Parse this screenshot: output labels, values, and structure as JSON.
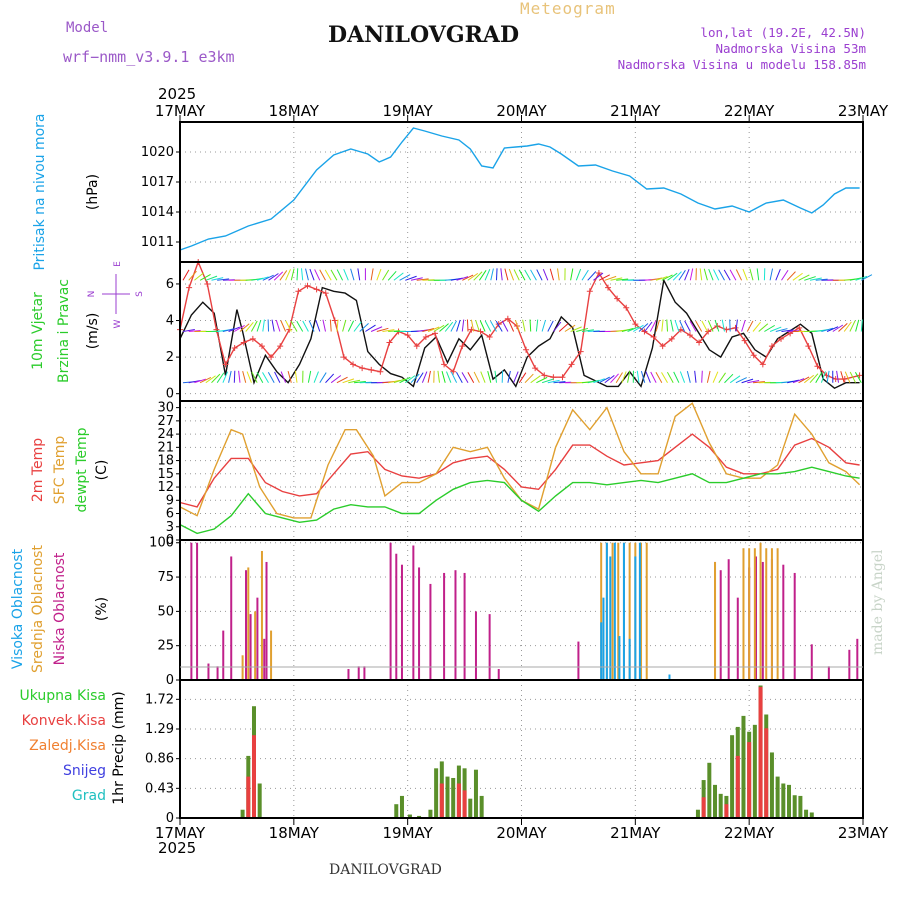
{
  "header": {
    "model_label": "Model",
    "model_name": "wrf−nmm_v3.9.1  e3km",
    "title": "DANILOVGRAD",
    "subtitle": "Meteogram",
    "lonlat": "lon,lat (19.2E, 42.5N)",
    "altitude": "Nadmorska Visina 53m",
    "model_altitude": "Nadmorska Visina u modelu 158.85m"
  },
  "footer": {
    "station": "DANILOVGRAD",
    "credit": "made by Angel"
  },
  "time_axis": {
    "year": "2025",
    "ticks": [
      "17MAY",
      "18MAY",
      "19MAY",
      "20MAY",
      "21MAY",
      "22MAY",
      "23MAY"
    ]
  },
  "compass": {
    "n": "N",
    "s": "S",
    "e": "E",
    "w": "W"
  },
  "colors": {
    "pressure": "#1aa3e8",
    "wind_label": "#2bcc2b",
    "temp2m": "#e84040",
    "sfc_temp": "#e0a030",
    "dewpt": "#2bcc2b",
    "high_cloud": "#1aa3e8",
    "mid_cloud": "#e0a030",
    "low_cloud": "#c0208a",
    "total_precip": "#2bcc2b",
    "conv_precip": "#e84040",
    "frozen_precip": "#f08030",
    "snow": "#4040e0",
    "hail": "#20c0c0"
  },
  "chart_data": [
    {
      "id": "pressure",
      "type": "line",
      "labels": [
        "Pritisak na nivou mora",
        "(hPa)"
      ],
      "ylim": [
        1009,
        1023
      ],
      "yticks": [
        "1011",
        "1014",
        "1017",
        "1020"
      ],
      "series": [
        {
          "name": "Pressure",
          "color": "#1aa3e8",
          "x": [
            0,
            0.1,
            0.25,
            0.4,
            0.6,
            0.8,
            1.0,
            1.2,
            1.35,
            1.5,
            1.65,
            1.75,
            1.85,
            1.95,
            2.05,
            2.15,
            2.3,
            2.45,
            2.55,
            2.65,
            2.75,
            2.85,
            2.95,
            3.05,
            3.15,
            3.25,
            3.35,
            3.5,
            3.65,
            3.8,
            3.95,
            4.1,
            4.25,
            4.4,
            4.55,
            4.7,
            4.85,
            5.0,
            5.15,
            5.3,
            5.45,
            5.55,
            5.65,
            5.75,
            5.85,
            5.97
          ],
          "values": [
            1010.2,
            1010.6,
            1011.3,
            1011.6,
            1012.6,
            1013.3,
            1015.2,
            1018.2,
            1019.7,
            1020.3,
            1019.8,
            1019.0,
            1019.5,
            1021.0,
            1022.4,
            1022.1,
            1021.6,
            1021.2,
            1020.3,
            1018.6,
            1018.4,
            1020.4,
            1020.5,
            1020.6,
            1020.8,
            1020.5,
            1019.8,
            1018.6,
            1018.7,
            1018.1,
            1017.6,
            1016.3,
            1016.4,
            1015.8,
            1014.9,
            1014.3,
            1014.6,
            1014.0,
            1014.9,
            1015.2,
            1014.4,
            1013.9,
            1014.7,
            1015.8,
            1016.4,
            1016.4
          ]
        }
      ]
    },
    {
      "id": "wind",
      "type": "line",
      "labels": [
        "10m Vjetar",
        "Brzina i Pravac",
        "(m/s)"
      ],
      "ylim": [
        -0.4,
        7.2
      ],
      "yticks": [
        "0",
        "2",
        "4",
        "6"
      ],
      "series": [
        {
          "name": "Wind speed",
          "color": "#111111",
          "x": [
            0,
            0.1,
            0.2,
            0.3,
            0.4,
            0.5,
            0.55,
            0.65,
            0.75,
            0.85,
            0.95,
            1.05,
            1.15,
            1.25,
            1.35,
            1.45,
            1.55,
            1.65,
            1.75,
            1.85,
            1.95,
            2.05,
            2.15,
            2.25,
            2.35,
            2.45,
            2.55,
            2.65,
            2.75,
            2.85,
            2.95,
            3.05,
            3.15,
            3.25,
            3.35,
            3.45,
            3.55,
            3.65,
            3.75,
            3.85,
            3.95,
            4.05,
            4.15,
            4.25,
            4.35,
            4.45,
            4.55,
            4.65,
            4.75,
            4.85,
            4.95,
            5.05,
            5.15,
            5.25,
            5.35,
            5.45,
            5.55,
            5.65,
            5.75,
            5.85,
            5.97
          ],
          "values": [
            3.0,
            4.3,
            5.0,
            4.4,
            1.0,
            4.6,
            3.4,
            0.6,
            2.1,
            1.2,
            0.6,
            1.6,
            3.0,
            5.8,
            5.6,
            5.5,
            5.1,
            2.3,
            1.6,
            1.1,
            0.9,
            0.4,
            2.5,
            3.1,
            1.7,
            3.0,
            2.4,
            3.2,
            0.8,
            1.3,
            0.4,
            2.0,
            2.6,
            3.0,
            4.2,
            3.6,
            1.0,
            0.7,
            0.4,
            0.4,
            1.2,
            0.4,
            2.5,
            6.2,
            5.0,
            4.4,
            3.4,
            2.4,
            2.0,
            3.1,
            3.3,
            2.4,
            2.0,
            3.0,
            3.4,
            3.8,
            3.3,
            0.8,
            0.3,
            0.6,
            0.6
          ]
        },
        {
          "name": "Wind gust",
          "color": "#e84040",
          "x": [
            0,
            0.08,
            0.16,
            0.24,
            0.32,
            0.4,
            0.48,
            0.56,
            0.64,
            0.72,
            0.8,
            0.88,
            0.96,
            1.04,
            1.12,
            1.2,
            1.28,
            1.36,
            1.44,
            1.52,
            1.6,
            1.68,
            1.76,
            1.84,
            1.92,
            2.0,
            2.08,
            2.16,
            2.24,
            2.32,
            2.4,
            2.48,
            2.56,
            2.64,
            2.72,
            2.8,
            2.88,
            2.96,
            3.04,
            3.12,
            3.2,
            3.28,
            3.36,
            3.44,
            3.52,
            3.6,
            3.68,
            3.76,
            3.84,
            3.92,
            4.0,
            4.08,
            4.16,
            4.24,
            4.32,
            4.4,
            4.48,
            4.56,
            4.64,
            4.72,
            4.8,
            4.88,
            4.96,
            5.04,
            5.12,
            5.2,
            5.28,
            5.36,
            5.44,
            5.52,
            5.6,
            5.68,
            5.76,
            5.84,
            5.97
          ],
          "values": [
            3.5,
            5.8,
            7.2,
            6.0,
            3.5,
            1.6,
            2.5,
            2.8,
            3.0,
            2.6,
            2.0,
            2.6,
            3.5,
            5.6,
            5.9,
            5.7,
            5.5,
            4.0,
            2.0,
            1.6,
            1.4,
            1.3,
            1.2,
            2.8,
            3.4,
            3.2,
            2.6,
            3.1,
            3.3,
            1.6,
            1.2,
            2.6,
            3.5,
            3.4,
            3.1,
            3.8,
            4.1,
            3.7,
            2.4,
            1.4,
            1.0,
            0.9,
            0.9,
            1.6,
            2.3,
            5.6,
            6.6,
            5.8,
            5.2,
            4.7,
            3.8,
            3.4,
            3.1,
            2.6,
            3.0,
            3.5,
            3.2,
            2.8,
            3.4,
            3.7,
            3.5,
            3.6,
            2.9,
            2.1,
            1.6,
            2.6,
            3.0,
            3.3,
            3.6,
            2.6,
            1.5,
            1.0,
            0.8,
            0.8,
            1.0
          ]
        }
      ]
    },
    {
      "id": "temperature",
      "type": "line",
      "labels": [
        "2m Temp",
        "SFC Temp",
        "dewpt Temp",
        "(C)"
      ],
      "ylim": [
        0,
        31.5
      ],
      "yticks": [
        "0",
        "3",
        "6",
        "9",
        "12",
        "15",
        "18",
        "21",
        "24",
        "27",
        "30"
      ],
      "series": [
        {
          "name": "2m Temp",
          "color": "#e84040",
          "x": [
            0,
            0.15,
            0.3,
            0.45,
            0.6,
            0.75,
            0.9,
            1.05,
            1.2,
            1.35,
            1.5,
            1.65,
            1.8,
            1.95,
            2.1,
            2.25,
            2.4,
            2.55,
            2.7,
            2.85,
            3.0,
            3.15,
            3.3,
            3.45,
            3.6,
            3.75,
            3.9,
            4.05,
            4.2,
            4.35,
            4.5,
            4.65,
            4.8,
            4.95,
            5.1,
            5.25,
            5.4,
            5.55,
            5.7,
            5.85,
            5.97
          ],
          "values": [
            8.5,
            7.5,
            14,
            18.5,
            18.5,
            13,
            11,
            10,
            10.5,
            15,
            19.5,
            20,
            16,
            14.5,
            14,
            15,
            17.5,
            18.5,
            19,
            16,
            12,
            11.5,
            16,
            21.5,
            21.5,
            19,
            17,
            17.5,
            18,
            21,
            24,
            21,
            16.5,
            15,
            15,
            16,
            21.5,
            23,
            21,
            17.5,
            17
          ]
        },
        {
          "name": "SFC Temp",
          "color": "#e0a030",
          "x": [
            0,
            0.15,
            0.3,
            0.45,
            0.55,
            0.7,
            0.85,
            1.0,
            1.15,
            1.3,
            1.45,
            1.55,
            1.7,
            1.8,
            1.95,
            2.1,
            2.25,
            2.4,
            2.55,
            2.7,
            2.85,
            3.0,
            3.15,
            3.3,
            3.45,
            3.6,
            3.75,
            3.9,
            4.05,
            4.2,
            4.35,
            4.5,
            4.65,
            4.8,
            4.95,
            5.1,
            5.25,
            5.4,
            5.55,
            5.7,
            5.85,
            5.97
          ],
          "values": [
            7.5,
            5.5,
            16,
            25,
            24,
            12,
            6,
            5,
            5,
            17,
            25,
            25,
            19,
            10,
            13,
            13,
            15,
            21,
            20,
            21,
            14,
            9,
            7,
            21,
            29.5,
            25,
            30,
            20,
            15,
            15,
            28,
            31,
            22,
            15,
            14,
            14,
            17,
            28.5,
            24,
            17.5,
            15.5,
            12.5
          ]
        },
        {
          "name": "dewpt Temp",
          "color": "#2bcc2b",
          "x": [
            0,
            0.15,
            0.3,
            0.45,
            0.6,
            0.75,
            0.9,
            1.05,
            1.2,
            1.35,
            1.5,
            1.65,
            1.8,
            1.95,
            2.1,
            2.25,
            2.4,
            2.55,
            2.7,
            2.85,
            3.0,
            3.15,
            3.3,
            3.45,
            3.6,
            3.75,
            3.9,
            4.05,
            4.2,
            4.35,
            4.5,
            4.65,
            4.8,
            4.95,
            5.1,
            5.25,
            5.4,
            5.55,
            5.7,
            5.85,
            5.97
          ],
          "values": [
            3.5,
            1.5,
            2.5,
            5.5,
            10.5,
            6,
            5,
            4,
            4.5,
            7,
            8,
            7.5,
            7.5,
            6,
            6,
            9,
            11.5,
            13,
            13.5,
            13,
            9,
            6.5,
            10,
            13,
            13,
            12.5,
            13,
            13.5,
            13,
            14,
            15,
            13,
            13,
            14,
            15,
            15,
            15.5,
            16.5,
            15.5,
            14.5,
            14
          ]
        }
      ]
    },
    {
      "id": "clouds",
      "type": "bar",
      "labels": [
        "Visoka Oblacnost",
        "Srednja Oblacnost",
        "Niska Oblacnost",
        "(%)"
      ],
      "ylim": [
        0,
        102
      ],
      "yticks": [
        "0",
        "25",
        "50",
        "75",
        "100"
      ],
      "series": [
        {
          "name": "Niska Oblacnost",
          "color": "#c0208a",
          "x": [
            0.1,
            0.15,
            0.25,
            0.33,
            0.38,
            0.45,
            0.58,
            0.62,
            0.68,
            0.74,
            0.76,
            1.48,
            1.57,
            1.62,
            1.85,
            1.9,
            1.95,
            2.05,
            2.1,
            2.2,
            2.32,
            2.42,
            2.5,
            2.6,
            2.72,
            2.8,
            3.5,
            4.7,
            4.75,
            4.82,
            4.9,
            5.0,
            5.06,
            5.12,
            5.2,
            5.3,
            5.4,
            5.55,
            5.7,
            5.88,
            5.95
          ],
          "values": [
            100,
            100,
            12,
            10,
            36,
            90,
            80,
            48,
            60,
            30,
            86,
            8,
            10,
            10,
            100,
            92,
            84,
            98,
            82,
            70,
            78,
            80,
            78,
            50,
            48,
            8,
            28,
            86,
            80,
            88,
            60,
            82,
            90,
            86,
            88,
            84,
            78,
            26,
            10,
            22,
            30
          ]
        },
        {
          "name": "Srednja Oblacnost",
          "color": "#e0a030",
          "x": [
            0.55,
            0.6,
            0.66,
            0.72,
            0.8,
            3.7,
            3.75,
            3.8,
            3.85,
            3.9,
            3.95,
            4.0,
            4.05,
            4.1,
            4.7,
            4.95,
            5.0,
            5.05,
            5.1,
            5.15,
            5.2,
            5.25
          ],
          "values": [
            18,
            82,
            50,
            94,
            36,
            100,
            100,
            100,
            100,
            100,
            100,
            100,
            100,
            100,
            86,
            96,
            96,
            96,
            100,
            96,
            96,
            96
          ]
        },
        {
          "name": "Visoka Oblacnost",
          "color": "#1aa3e8",
          "x": [
            3.7,
            3.72,
            3.75,
            3.78,
            3.82,
            3.86,
            3.9,
            3.95,
            4.0,
            4.04,
            4.3
          ],
          "values": [
            42,
            60,
            100,
            90,
            100,
            32,
            100,
            30,
            90,
            100,
            4
          ]
        }
      ]
    },
    {
      "id": "precip",
      "type": "bar",
      "labels": [
        "1hr Precip (mm)"
      ],
      "legend": [
        "Ukupna Kisa",
        "Konvek.Kisa",
        "Zaledj.Kisa",
        "Snijeg",
        "Grad"
      ],
      "ylim": [
        0,
        2.0
      ],
      "yticks": [
        "0",
        "0.43",
        "0.86",
        "1.29",
        "1.72"
      ],
      "series": [
        {
          "name": "Ukupna Kisa",
          "color": "#5a8f2a",
          "x": [
            0.55,
            0.6,
            0.65,
            0.7,
            1.9,
            1.95,
            2.02,
            2.1,
            2.2,
            2.25,
            2.3,
            2.35,
            2.4,
            2.45,
            2.5,
            2.55,
            2.6,
            2.65,
            4.55,
            4.6,
            4.65,
            4.7,
            4.75,
            4.8,
            4.85,
            4.9,
            4.95,
            5.0,
            5.05,
            5.1,
            5.15,
            5.2,
            5.25,
            5.3,
            5.35,
            5.4,
            5.45,
            5.5,
            5.55
          ],
          "values": [
            0.12,
            0.9,
            1.62,
            0.5,
            0.2,
            0.32,
            0.05,
            0.03,
            0.12,
            0.72,
            0.82,
            0.6,
            0.58,
            0.76,
            0.72,
            0.28,
            0.7,
            0.32,
            0.12,
            0.55,
            0.8,
            0.48,
            0.35,
            0.32,
            1.2,
            1.32,
            1.48,
            1.25,
            1.35,
            1.92,
            1.5,
            0.95,
            0.6,
            0.5,
            0.48,
            0.33,
            0.32,
            0.12,
            0.08
          ]
        },
        {
          "name": "Konvek.Kisa",
          "color": "#e84040",
          "x": [
            0.6,
            0.65,
            2.3,
            2.45,
            2.5,
            4.6,
            4.8,
            4.9,
            5.0,
            5.1,
            5.15
          ],
          "values": [
            0.6,
            1.2,
            0.5,
            0.5,
            0.4,
            0.3,
            0.2,
            0.9,
            1.1,
            1.9,
            1.3
          ]
        }
      ]
    }
  ]
}
